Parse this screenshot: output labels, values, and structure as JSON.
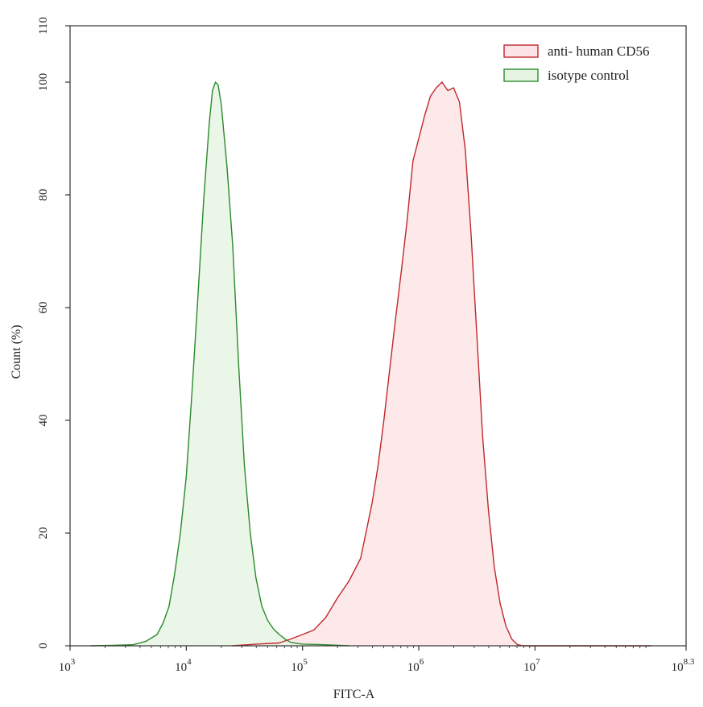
{
  "chart_data": {
    "type": "area",
    "xlabel": "FITC-A",
    "ylabel": "Count (%)",
    "x_scale": "log",
    "xlim": [
      1000,
      199526231
    ],
    "ylim": [
      0,
      110
    ],
    "x_ticks": [
      {
        "value": 1000,
        "base": "10",
        "exp": "3"
      },
      {
        "value": 10000,
        "base": "10",
        "exp": "4"
      },
      {
        "value": 100000,
        "base": "10",
        "exp": "5"
      },
      {
        "value": 1000000,
        "base": "10",
        "exp": "6"
      },
      {
        "value": 10000000,
        "base": "10",
        "exp": "7"
      },
      {
        "value": 199526231,
        "base": "10",
        "exp": "8.3"
      }
    ],
    "y_ticks": [
      "0",
      "20",
      "40",
      "60",
      "80",
      "100",
      "110"
    ],
    "grid": false,
    "legend_position": "top-right",
    "series": [
      {
        "name": "anti- human CD56",
        "line_color": "#c0282b",
        "fill_color": "#fde4e6",
        "points": [
          [
            25000,
            0
          ],
          [
            40000,
            0.3
          ],
          [
            63000,
            0.5
          ],
          [
            79000,
            1.2
          ],
          [
            100000,
            2.0
          ],
          [
            125000,
            2.8
          ],
          [
            158000,
            5.0
          ],
          [
            200000,
            8.5
          ],
          [
            251000,
            11.5
          ],
          [
            316000,
            15.5
          ],
          [
            355000,
            20.5
          ],
          [
            398000,
            25.5
          ],
          [
            447000,
            32.0
          ],
          [
            501000,
            40.0
          ],
          [
            562000,
            49.0
          ],
          [
            631000,
            58.0
          ],
          [
            708000,
            66.5
          ],
          [
            794000,
            75.5
          ],
          [
            891000,
            86.0
          ],
          [
            1000000,
            90.0
          ],
          [
            1122000,
            94.0
          ],
          [
            1259000,
            97.5
          ],
          [
            1413000,
            99.0
          ],
          [
            1585000,
            100.0
          ],
          [
            1778000,
            98.5
          ],
          [
            1995000,
            99.0
          ],
          [
            2239000,
            96.5
          ],
          [
            2512000,
            88.0
          ],
          [
            2818000,
            73.0
          ],
          [
            3162000,
            55.0
          ],
          [
            3548000,
            37.0
          ],
          [
            3981000,
            24.0
          ],
          [
            4467000,
            14.0
          ],
          [
            5012000,
            7.5
          ],
          [
            5623000,
            3.5
          ],
          [
            6310000,
            1.2
          ],
          [
            7079000,
            0.2
          ],
          [
            7943000,
            0
          ],
          [
            100000000,
            0
          ]
        ]
      },
      {
        "name": "isotype control",
        "line_color": "#2b8a2b",
        "fill_color": "#e6f4e3",
        "points": [
          [
            1500,
            0
          ],
          [
            2500,
            0.1
          ],
          [
            3500,
            0.2
          ],
          [
            4500,
            0.8
          ],
          [
            5600,
            2.0
          ],
          [
            6300,
            4.0
          ],
          [
            7100,
            7.0
          ],
          [
            7900,
            12.5
          ],
          [
            8900,
            20.0
          ],
          [
            10000,
            30.0
          ],
          [
            11200,
            45.0
          ],
          [
            12600,
            62.0
          ],
          [
            14100,
            79.0
          ],
          [
            15800,
            93.0
          ],
          [
            16800,
            98.5
          ],
          [
            17800,
            100.0
          ],
          [
            18800,
            99.5
          ],
          [
            20000,
            96.0
          ],
          [
            22400,
            85.0
          ],
          [
            25100,
            71.0
          ],
          [
            28200,
            50.0
          ],
          [
            31600,
            32.0
          ],
          [
            35500,
            20.0
          ],
          [
            39800,
            12.0
          ],
          [
            44700,
            7.0
          ],
          [
            50100,
            4.5
          ],
          [
            56200,
            3.0
          ],
          [
            63100,
            2.0
          ],
          [
            70800,
            1.2
          ],
          [
            79400,
            0.6
          ],
          [
            100000,
            0.3
          ],
          [
            150000,
            0.2
          ],
          [
            250000,
            0
          ]
        ]
      }
    ]
  }
}
